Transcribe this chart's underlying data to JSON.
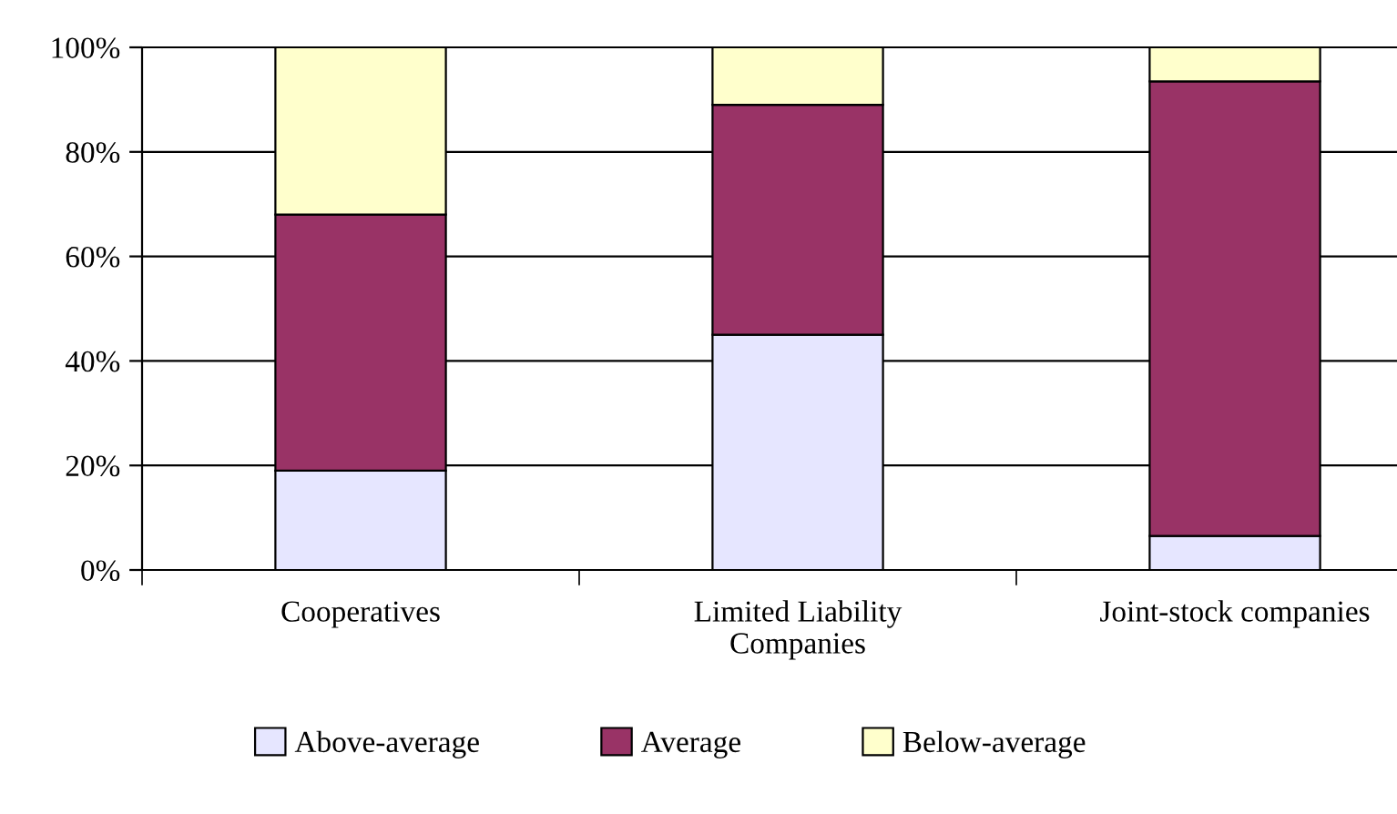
{
  "chart_data": {
    "type": "bar",
    "stacked": true,
    "categories": [
      "Cooperatives",
      "Limited Liability\nCompanies",
      "Joint-stock companies"
    ],
    "series": [
      {
        "name": "Above-average",
        "color": "#e6e6ff",
        "values": [
          19,
          45,
          6.5
        ]
      },
      {
        "name": "Average",
        "color": "#993366",
        "values": [
          49,
          44,
          87
        ]
      },
      {
        "name": "Below-average",
        "color": "#ffffcc",
        "values": [
          32,
          11,
          6.5
        ]
      }
    ],
    "ylim": [
      0,
      100
    ],
    "yticks": [
      {
        "value": 0,
        "label": "0%"
      },
      {
        "value": 20,
        "label": "20%"
      },
      {
        "value": 40,
        "label": "40%"
      },
      {
        "value": 60,
        "label": "60%"
      },
      {
        "value": 80,
        "label": "80%"
      },
      {
        "value": 100,
        "label": "100%"
      }
    ],
    "grid": "y",
    "legend": "bottom"
  }
}
